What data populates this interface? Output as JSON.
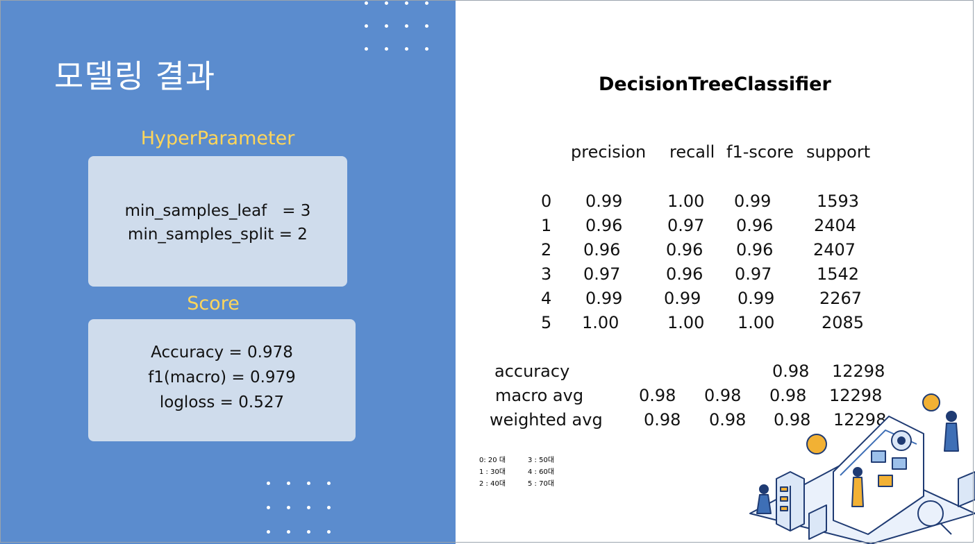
{
  "slide": {
    "title": "모델링 결과"
  },
  "hyperparameter": {
    "label": "HyperParameter",
    "lines": [
      "min_samples_leaf   = 3",
      "min_samples_split = 2"
    ]
  },
  "score": {
    "label": "Score",
    "lines": [
      "Accuracy = 0.978",
      "f1(macro) = 0.979",
      "logloss = 0.527"
    ]
  },
  "report": {
    "title": "DecisionTreeClassifier",
    "headers": [
      "precision",
      "recall",
      "f1-score",
      "support"
    ],
    "rows": [
      {
        "label": "0",
        "precision": "0.99",
        "recall": "1.00",
        "f1": "0.99",
        "support": "1593"
      },
      {
        "label": "1",
        "precision": "0.96",
        "recall": "0.97",
        "f1": "0.96",
        "support": "2404"
      },
      {
        "label": "2",
        "precision": "0.96",
        "recall": "0.96",
        "f1": "0.96",
        "support": "2407"
      },
      {
        "label": "3",
        "precision": "0.97",
        "recall": "0.96",
        "f1": "0.97",
        "support": "1542"
      },
      {
        "label": "4",
        "precision": "0.99",
        "recall": "0.99",
        "f1": "0.99",
        "support": "2267"
      },
      {
        "label": "5",
        "precision": "1.00",
        "recall": "1.00",
        "f1": "1.00",
        "support": "2085"
      }
    ],
    "summary": [
      {
        "label": "accuracy",
        "precision": "",
        "recall": "",
        "f1": "0.98",
        "support": "12298"
      },
      {
        "label": "macro avg",
        "precision": "0.98",
        "recall": "0.98",
        "f1": "0.98",
        "support": "12298"
      },
      {
        "label": "weighted avg",
        "precision": "0.98",
        "recall": "0.98",
        "f1": "0.98",
        "support": "12298"
      }
    ]
  },
  "legend": {
    "rows": [
      [
        "0: 20 대",
        "3 : 50대"
      ],
      [
        "1 : 30대",
        "4 : 60대"
      ],
      [
        "2 : 40대",
        "5 : 70대"
      ]
    ]
  },
  "colors": {
    "panel": "#5b8cce",
    "accent": "#ffd65a",
    "card": "#cfdcec"
  }
}
